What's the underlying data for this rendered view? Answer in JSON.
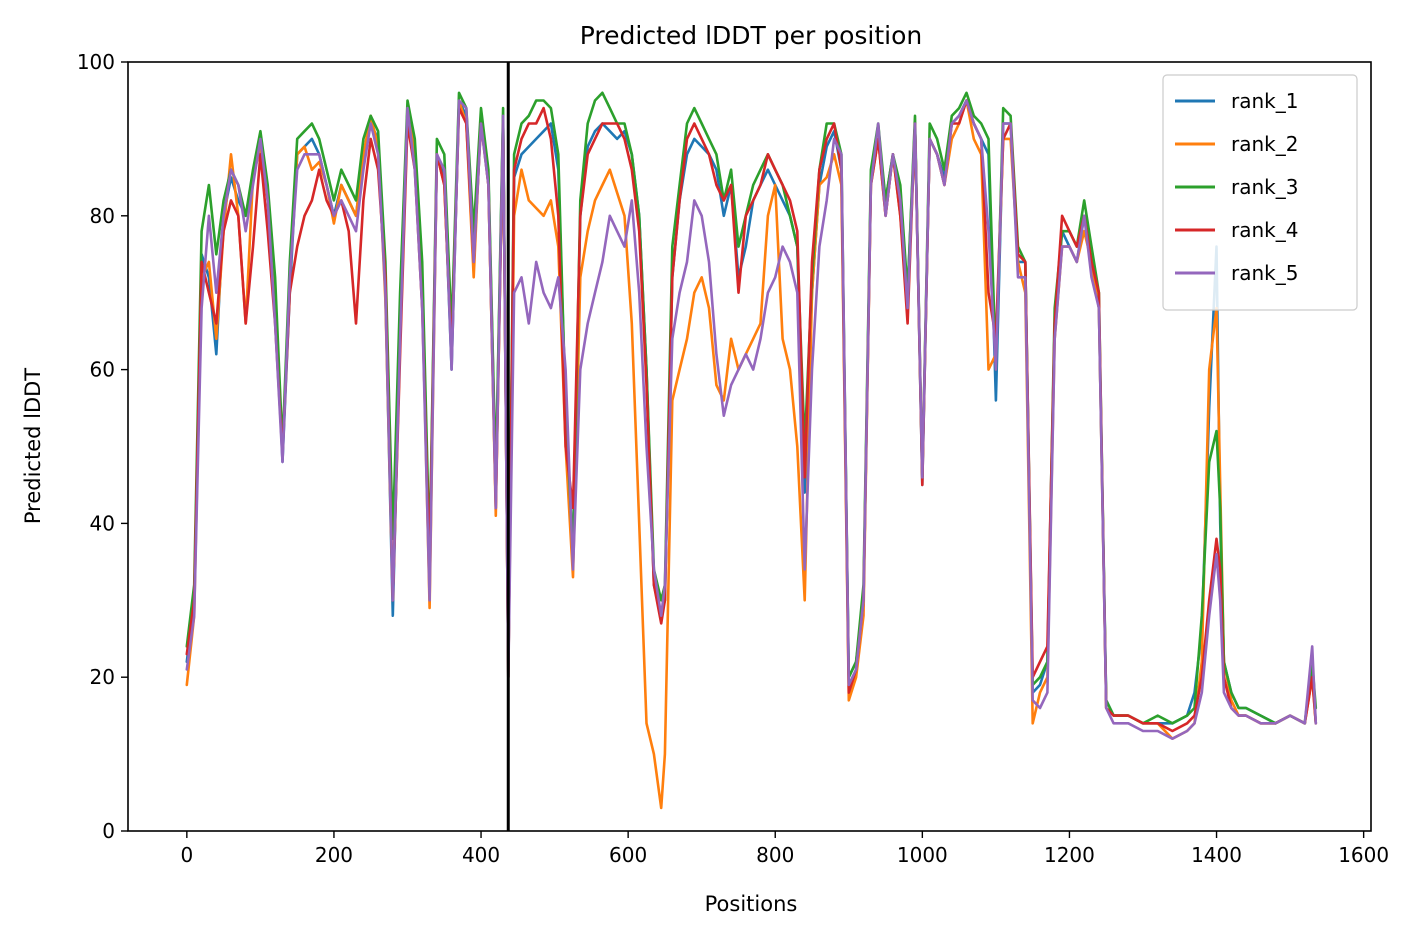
{
  "chart_data": {
    "type": "line",
    "title": "Predicted lDDT per position",
    "xlabel": "Positions",
    "ylabel": "Predicted lDDT",
    "xlim": [
      -80,
      1610
    ],
    "ylim": [
      0,
      100
    ],
    "xticks": [
      0,
      200,
      400,
      600,
      800,
      1000,
      1200,
      1400,
      1600
    ],
    "yticks": [
      0,
      20,
      40,
      60,
      80,
      100
    ],
    "grid": false,
    "legend_position": "top-right",
    "vline_x": 437,
    "vline_color": "#000000",
    "x": [
      0,
      10,
      20,
      30,
      40,
      50,
      60,
      70,
      80,
      90,
      100,
      110,
      120,
      130,
      140,
      150,
      160,
      170,
      180,
      190,
      200,
      210,
      220,
      230,
      240,
      250,
      260,
      270,
      280,
      290,
      300,
      310,
      320,
      330,
      340,
      350,
      360,
      370,
      380,
      390,
      400,
      410,
      420,
      430,
      437,
      445,
      455,
      465,
      475,
      485,
      495,
      505,
      515,
      525,
      535,
      545,
      555,
      565,
      575,
      585,
      595,
      605,
      615,
      625,
      635,
      645,
      650,
      660,
      670,
      680,
      690,
      700,
      710,
      720,
      730,
      740,
      750,
      760,
      770,
      780,
      790,
      800,
      810,
      820,
      830,
      840,
      850,
      860,
      870,
      880,
      890,
      900,
      910,
      920,
      930,
      940,
      950,
      960,
      970,
      980,
      990,
      1000,
      1010,
      1020,
      1030,
      1040,
      1050,
      1060,
      1070,
      1080,
      1090,
      1100,
      1110,
      1120,
      1130,
      1140,
      1150,
      1160,
      1170,
      1180,
      1190,
      1200,
      1210,
      1220,
      1230,
      1240,
      1250,
      1260,
      1280,
      1300,
      1320,
      1340,
      1360,
      1370,
      1380,
      1390,
      1400,
      1405,
      1410,
      1420,
      1430,
      1440,
      1460,
      1480,
      1500,
      1520,
      1530,
      1535
    ],
    "series": [
      {
        "name": "rank_1",
        "color": "#1f77b4",
        "values": [
          22,
          30,
          75,
          72,
          62,
          80,
          85,
          82,
          80,
          85,
          90,
          82,
          70,
          48,
          70,
          88,
          89,
          90,
          88,
          84,
          80,
          84,
          82,
          80,
          88,
          92,
          90,
          70,
          28,
          65,
          94,
          88,
          70,
          35,
          88,
          85,
          60,
          95,
          93,
          75,
          93,
          85,
          45,
          93,
          20,
          85,
          88,
          89,
          90,
          91,
          92,
          86,
          55,
          36,
          80,
          89,
          91,
          92,
          91,
          90,
          91,
          88,
          80,
          60,
          32,
          28,
          30,
          72,
          82,
          88,
          90,
          89,
          88,
          86,
          80,
          84,
          72,
          76,
          82,
          84,
          86,
          84,
          82,
          80,
          76,
          44,
          70,
          84,
          89,
          91,
          86,
          20,
          22,
          30,
          85,
          90,
          82,
          88,
          82,
          70,
          92,
          45,
          90,
          88,
          85,
          92,
          93,
          95,
          92,
          90,
          88,
          56,
          92,
          92,
          74,
          74,
          18,
          19,
          22,
          66,
          78,
          76,
          74,
          80,
          74,
          68,
          17,
          15,
          15,
          14,
          14,
          14,
          15,
          18,
          26,
          55,
          76,
          40,
          22,
          18,
          16,
          16,
          15,
          14,
          15,
          14,
          22,
          14
        ]
      },
      {
        "name": "rank_2",
        "color": "#ff7f0e",
        "values": [
          19,
          28,
          72,
          74,
          64,
          78,
          88,
          80,
          66,
          85,
          89,
          82,
          68,
          49,
          72,
          88,
          89,
          86,
          87,
          84,
          79,
          84,
          82,
          80,
          88,
          93,
          89,
          69,
          30,
          64,
          94,
          88,
          70,
          29,
          88,
          84,
          62,
          95,
          92,
          72,
          93,
          84,
          41,
          93,
          20,
          80,
          86,
          82,
          81,
          80,
          82,
          76,
          50,
          33,
          72,
          78,
          82,
          84,
          86,
          83,
          80,
          66,
          40,
          14,
          10,
          3,
          10,
          56,
          60,
          64,
          70,
          72,
          68,
          58,
          56,
          64,
          60,
          62,
          64,
          66,
          80,
          84,
          64,
          60,
          50,
          30,
          70,
          84,
          85,
          88,
          84,
          17,
          20,
          28,
          84,
          90,
          80,
          88,
          80,
          68,
          92,
          46,
          90,
          88,
          84,
          90,
          92,
          95,
          90,
          88,
          60,
          62,
          90,
          90,
          74,
          70,
          14,
          18,
          20,
          64,
          76,
          76,
          74,
          78,
          74,
          68,
          16,
          15,
          15,
          14,
          14,
          12,
          13,
          14,
          22,
          60,
          68,
          45,
          22,
          17,
          15,
          15,
          14,
          14,
          15,
          14,
          20,
          14
        ]
      },
      {
        "name": "rank_3",
        "color": "#2ca02c",
        "values": [
          24,
          32,
          78,
          84,
          75,
          82,
          86,
          84,
          80,
          86,
          91,
          84,
          72,
          50,
          74,
          90,
          91,
          92,
          90,
          86,
          82,
          86,
          84,
          82,
          90,
          93,
          91,
          74,
          38,
          70,
          95,
          90,
          74,
          36,
          90,
          88,
          65,
          96,
          94,
          78,
          94,
          86,
          46,
          94,
          22,
          88,
          92,
          93,
          95,
          95,
          94,
          88,
          55,
          36,
          82,
          92,
          95,
          96,
          94,
          92,
          92,
          88,
          80,
          60,
          34,
          30,
          32,
          76,
          84,
          92,
          94,
          92,
          90,
          88,
          82,
          86,
          76,
          80,
          84,
          86,
          88,
          86,
          84,
          80,
          76,
          50,
          72,
          86,
          92,
          92,
          88,
          20,
          22,
          32,
          86,
          92,
          82,
          88,
          84,
          70,
          93,
          46,
          92,
          90,
          86,
          93,
          94,
          96,
          93,
          92,
          90,
          60,
          94,
          93,
          76,
          74,
          19,
          20,
          22,
          68,
          78,
          78,
          76,
          82,
          76,
          70,
          17,
          15,
          15,
          14,
          15,
          14,
          15,
          16,
          28,
          48,
          52,
          42,
          22,
          18,
          16,
          16,
          15,
          14,
          15,
          14,
          22,
          16
        ]
      },
      {
        "name": "rank_4",
        "color": "#d62728",
        "values": [
          23,
          30,
          74,
          70,
          66,
          78,
          82,
          80,
          66,
          76,
          88,
          78,
          66,
          49,
          70,
          76,
          80,
          82,
          86,
          82,
          80,
          82,
          78,
          66,
          82,
          90,
          86,
          72,
          30,
          62,
          92,
          86,
          68,
          34,
          88,
          84,
          62,
          94,
          92,
          74,
          92,
          84,
          42,
          92,
          20,
          86,
          90,
          92,
          92,
          94,
          90,
          80,
          50,
          42,
          80,
          88,
          90,
          92,
          92,
          92,
          90,
          86,
          78,
          58,
          32,
          27,
          30,
          72,
          82,
          90,
          92,
          90,
          88,
          84,
          82,
          84,
          70,
          80,
          82,
          84,
          88,
          86,
          84,
          82,
          78,
          46,
          74,
          86,
          90,
          92,
          86,
          18,
          21,
          30,
          84,
          90,
          80,
          88,
          80,
          66,
          92,
          45,
          90,
          88,
          84,
          92,
          92,
          95,
          92,
          90,
          70,
          64,
          90,
          92,
          75,
          74,
          20,
          22,
          24,
          66,
          80,
          78,
          76,
          80,
          74,
          70,
          16,
          15,
          15,
          14,
          14,
          13,
          14,
          15,
          20,
          30,
          38,
          34,
          20,
          16,
          15,
          15,
          14,
          14,
          15,
          14,
          20,
          14
        ]
      },
      {
        "name": "rank_5",
        "color": "#9467bd",
        "values": [
          21,
          28,
          68,
          80,
          70,
          80,
          86,
          84,
          78,
          84,
          90,
          82,
          66,
          48,
          72,
          86,
          88,
          88,
          88,
          84,
          80,
          82,
          80,
          78,
          86,
          92,
          88,
          70,
          30,
          64,
          94,
          86,
          68,
          30,
          88,
          86,
          60,
          95,
          94,
          74,
          92,
          84,
          42,
          93,
          20,
          70,
          72,
          66,
          74,
          70,
          68,
          72,
          60,
          34,
          60,
          66,
          70,
          74,
          80,
          78,
          76,
          82,
          70,
          50,
          34,
          28,
          32,
          64,
          70,
          74,
          82,
          80,
          74,
          62,
          54,
          58,
          60,
          62,
          60,
          64,
          70,
          72,
          76,
          74,
          70,
          34,
          60,
          76,
          82,
          90,
          88,
          19,
          21,
          30,
          84,
          92,
          80,
          88,
          82,
          68,
          92,
          46,
          90,
          88,
          84,
          92,
          93,
          95,
          92,
          90,
          78,
          60,
          92,
          92,
          72,
          72,
          17,
          16,
          18,
          64,
          76,
          76,
          74,
          80,
          72,
          68,
          16,
          14,
          14,
          13,
          13,
          12,
          13,
          14,
          18,
          28,
          36,
          30,
          18,
          16,
          15,
          15,
          14,
          14,
          15,
          14,
          24,
          14
        ]
      }
    ]
  }
}
